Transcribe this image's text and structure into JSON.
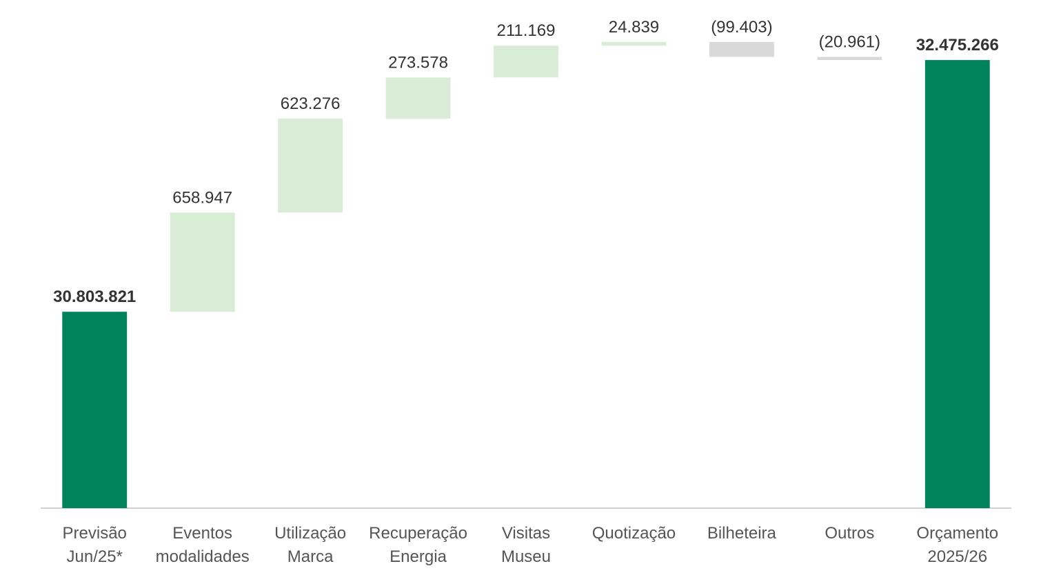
{
  "chart_data": {
    "type": "waterfall",
    "categories": [
      "Previsão\nJun/25*",
      "Eventos\nmodalidades",
      "Utilização\nMarca",
      "Recuperação\nEnergia",
      "Visitas\nMuseu",
      "Quotização",
      "Bilheteira",
      "Outros",
      "Orçamento\n2025/26"
    ],
    "values": [
      30803821,
      658947,
      623276,
      273578,
      211169,
      24839,
      -99403,
      -20961,
      32475266
    ],
    "value_labels": [
      "30.803.821",
      "658.947",
      "623.276",
      "273.578",
      "211.169",
      "24.839",
      "(99.403)",
      "(20.961)",
      "32.475.266"
    ],
    "measure": [
      "total",
      "relative",
      "relative",
      "relative",
      "relative",
      "relative",
      "relative",
      "relative",
      "total"
    ],
    "colors": {
      "total": "#00825a",
      "increase": "#d9ecd5",
      "decrease": "#d9d9d9"
    },
    "ylim": [
      29500000,
      32700000
    ]
  }
}
